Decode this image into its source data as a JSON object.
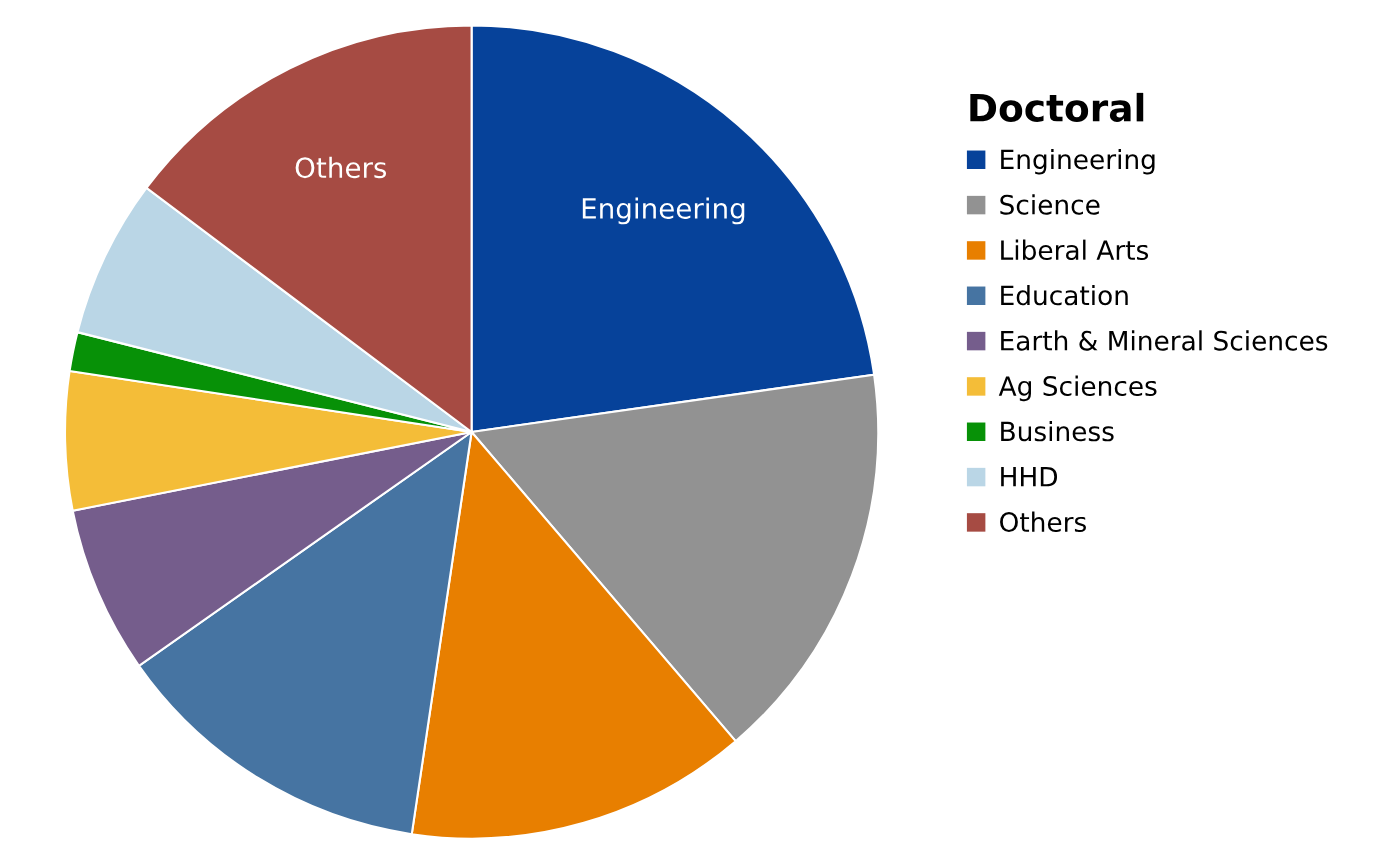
{
  "chart_data": {
    "type": "pie",
    "legend_title": "Doctoral",
    "legend": "right",
    "categories": [
      "Engineering",
      "Science",
      "Liberal Arts",
      "Education",
      "Earth & Mineral Sciences",
      "Ag Sciences",
      "Business",
      "HHD",
      "Others"
    ],
    "values": [
      22.75,
      16.0,
      13.6,
      12.9,
      6.65,
      5.5,
      1.55,
      6.3,
      14.75
    ],
    "colors": [
      "#06429a",
      "#929292",
      "#e87f00",
      "#4674a2",
      "#755d8c",
      "#f4bd38",
      "#079107",
      "#bad6e6",
      "#a64b43"
    ],
    "value_labels": [
      "Engineering",
      null,
      null,
      null,
      null,
      null,
      null,
      null,
      "Others"
    ]
  }
}
